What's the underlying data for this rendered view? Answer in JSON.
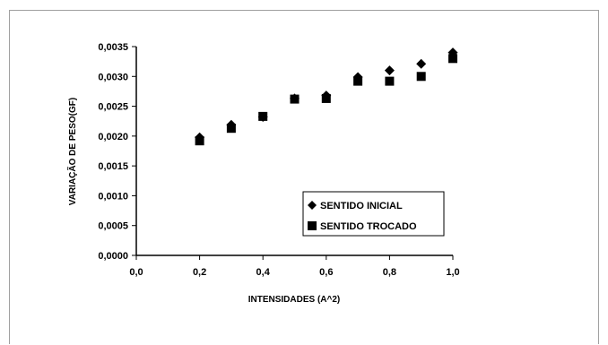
{
  "chart_data": {
    "type": "scatter",
    "title": "",
    "xlabel": "INTENSIDADES (A^2)",
    "ylabel": "VARIAÇÃO DE PESO(GF)",
    "xlim": [
      0,
      1.0
    ],
    "ylim": [
      0,
      0.0035
    ],
    "x_ticks": [
      "0,0",
      "0,2",
      "0,4",
      "0,6",
      "0,8",
      "1,0"
    ],
    "y_ticks": [
      "0,0000",
      "0,0005",
      "0,0010",
      "0,0015",
      "0,0020",
      "0,0025",
      "0,0030",
      "0,0035"
    ],
    "grid": false,
    "legend_position": "bottom-right",
    "colors": {
      "marker": "#000000",
      "axis": "#000000",
      "frame": "#a0a0a0"
    },
    "series": [
      {
        "name": "SENTIDO INICIAL",
        "marker": "diamond",
        "x": [
          0.2,
          0.3,
          0.4,
          0.5,
          0.6,
          0.7,
          0.8,
          0.9,
          1.0
        ],
        "y": [
          0.00198,
          0.00219,
          0.00232,
          0.00263,
          0.00268,
          0.00299,
          0.0031,
          0.00321,
          0.0034
        ]
      },
      {
        "name": "SENTIDO TROCADO",
        "marker": "square",
        "x": [
          0.2,
          0.3,
          0.4,
          0.5,
          0.6,
          0.7,
          0.8,
          0.9,
          1.0
        ],
        "y": [
          0.00192,
          0.00213,
          0.00233,
          0.00262,
          0.00263,
          0.00292,
          0.00292,
          0.003,
          0.0033
        ]
      }
    ]
  }
}
